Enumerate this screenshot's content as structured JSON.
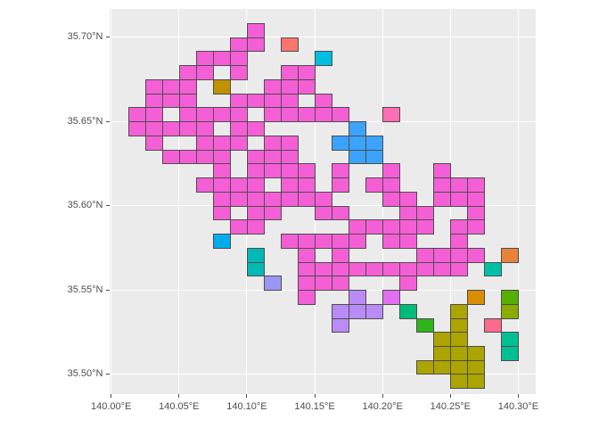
{
  "figure": {
    "background": "#FFFFFF",
    "panel_background": "#EBEBEB",
    "gridline_color": "#FFFFFF",
    "tile_border_color": "#4D4D4D",
    "axis_text_color": "#4D4D4D",
    "tick_mark_color": "#4D4D4D"
  },
  "chart_data": {
    "type": "heatmap",
    "subtype": "geographic-tile-map",
    "title": "",
    "xlabel": "",
    "ylabel": "",
    "legend": "none visible",
    "x_axis": {
      "ticks": [
        {
          "value": 140.0,
          "label": "140.00°E"
        },
        {
          "value": 140.05,
          "label": "140.05°E"
        },
        {
          "value": 140.1,
          "label": "140.10°E"
        },
        {
          "value": 140.15,
          "label": "140.15°E"
        },
        {
          "value": 140.2,
          "label": "140.20°E"
        },
        {
          "value": 140.25,
          "label": "140.25°E"
        },
        {
          "value": 140.3,
          "label": "140.30°E"
        }
      ]
    },
    "y_axis": {
      "ticks": [
        {
          "value": 35.7,
          "label": "35.70°N"
        },
        {
          "value": 35.65,
          "label": "35.65°N"
        },
        {
          "value": 35.6,
          "label": "35.60°N"
        },
        {
          "value": 35.55,
          "label": "35.55°N"
        },
        {
          "value": 35.5,
          "label": "35.50°N"
        }
      ]
    },
    "grid": {
      "major_x_step": 0.05,
      "major_y_step": 0.05,
      "minor_gridlines": false
    },
    "cell_definition": {
      "lon_size_deg": 0.0125,
      "lat_size_deg": 0.0083333,
      "origin_lon": 140.0,
      "row_rule": "lat_top = 35.7083333 - (r-1)*0.0083333 ; lon_left = 140.0 + c*0.0125"
    },
    "palette": {
      "magenta": "#F45FD6",
      "salmon": "#F8766D",
      "cyan": "#00BEDE",
      "gold": "#BE9200",
      "blue": "#3BA3FC",
      "azure": "#00ACEC",
      "teal": "#00B9B4",
      "tealgreen": "#00C1A8",
      "periwinkle": "#9A96F3",
      "lavender": "#B98BF6",
      "orchid": "#E26EF2",
      "hotpink": "#FF6EB4",
      "rose": "#FB6B8B",
      "orange": "#E8833C",
      "goldenrod": "#D98D00",
      "applegreen": "#55B000",
      "yellowgreen": "#89AC00",
      "springgreen": "#00BC78",
      "green": "#2FB41C",
      "olive": "#ACA400",
      "emerald": "#00BF92"
    },
    "cells": [
      [
        8,
        1,
        "magenta"
      ],
      [
        7,
        2,
        "magenta"
      ],
      [
        8,
        2,
        "magenta"
      ],
      [
        10,
        2,
        "salmon"
      ],
      [
        5,
        3,
        "magenta"
      ],
      [
        6,
        3,
        "magenta"
      ],
      [
        7,
        3,
        "magenta"
      ],
      [
        12,
        3,
        "cyan"
      ],
      [
        4,
        4,
        "magenta"
      ],
      [
        5,
        4,
        "magenta"
      ],
      [
        7,
        4,
        "magenta"
      ],
      [
        10,
        4,
        "magenta"
      ],
      [
        11,
        4,
        "magenta"
      ],
      [
        2,
        5,
        "magenta"
      ],
      [
        3,
        5,
        "magenta"
      ],
      [
        4,
        5,
        "magenta"
      ],
      [
        6,
        5,
        "gold"
      ],
      [
        9,
        5,
        "magenta"
      ],
      [
        10,
        5,
        "magenta"
      ],
      [
        11,
        5,
        "magenta"
      ],
      [
        2,
        6,
        "magenta"
      ],
      [
        3,
        6,
        "magenta"
      ],
      [
        4,
        6,
        "magenta"
      ],
      [
        7,
        6,
        "magenta"
      ],
      [
        8,
        6,
        "magenta"
      ],
      [
        9,
        6,
        "magenta"
      ],
      [
        10,
        6,
        "magenta"
      ],
      [
        12,
        6,
        "magenta"
      ],
      [
        1,
        7,
        "magenta"
      ],
      [
        2,
        7,
        "magenta"
      ],
      [
        4,
        7,
        "magenta"
      ],
      [
        5,
        7,
        "magenta"
      ],
      [
        6,
        7,
        "magenta"
      ],
      [
        7,
        7,
        "magenta"
      ],
      [
        9,
        7,
        "magenta"
      ],
      [
        10,
        7,
        "magenta"
      ],
      [
        11,
        7,
        "magenta"
      ],
      [
        12,
        7,
        "magenta"
      ],
      [
        13,
        7,
        "magenta"
      ],
      [
        16,
        7,
        "hotpink"
      ],
      [
        1,
        8,
        "magenta"
      ],
      [
        2,
        8,
        "magenta"
      ],
      [
        3,
        8,
        "magenta"
      ],
      [
        4,
        8,
        "magenta"
      ],
      [
        5,
        8,
        "magenta"
      ],
      [
        7,
        8,
        "magenta"
      ],
      [
        8,
        8,
        "magenta"
      ],
      [
        14,
        8,
        "blue"
      ],
      [
        2,
        9,
        "magenta"
      ],
      [
        5,
        9,
        "magenta"
      ],
      [
        6,
        9,
        "magenta"
      ],
      [
        7,
        9,
        "magenta"
      ],
      [
        9,
        9,
        "magenta"
      ],
      [
        10,
        9,
        "magenta"
      ],
      [
        13,
        9,
        "blue"
      ],
      [
        14,
        9,
        "blue"
      ],
      [
        15,
        9,
        "blue"
      ],
      [
        3,
        10,
        "magenta"
      ],
      [
        4,
        10,
        "magenta"
      ],
      [
        5,
        10,
        "magenta"
      ],
      [
        6,
        10,
        "magenta"
      ],
      [
        8,
        10,
        "magenta"
      ],
      [
        9,
        10,
        "magenta"
      ],
      [
        10,
        10,
        "magenta"
      ],
      [
        14,
        10,
        "blue"
      ],
      [
        15,
        10,
        "blue"
      ],
      [
        6,
        11,
        "magenta"
      ],
      [
        8,
        11,
        "magenta"
      ],
      [
        9,
        11,
        "magenta"
      ],
      [
        10,
        11,
        "magenta"
      ],
      [
        11,
        11,
        "magenta"
      ],
      [
        13,
        11,
        "magenta"
      ],
      [
        16,
        11,
        "magenta"
      ],
      [
        19,
        11,
        "magenta"
      ],
      [
        5,
        12,
        "magenta"
      ],
      [
        6,
        12,
        "magenta"
      ],
      [
        7,
        12,
        "magenta"
      ],
      [
        8,
        12,
        "magenta"
      ],
      [
        10,
        12,
        "magenta"
      ],
      [
        11,
        12,
        "magenta"
      ],
      [
        13,
        12,
        "magenta"
      ],
      [
        15,
        12,
        "magenta"
      ],
      [
        16,
        12,
        "magenta"
      ],
      [
        19,
        12,
        "magenta"
      ],
      [
        20,
        12,
        "magenta"
      ],
      [
        21,
        12,
        "magenta"
      ],
      [
        6,
        13,
        "magenta"
      ],
      [
        7,
        13,
        "magenta"
      ],
      [
        8,
        13,
        "magenta"
      ],
      [
        9,
        13,
        "magenta"
      ],
      [
        10,
        13,
        "magenta"
      ],
      [
        11,
        13,
        "magenta"
      ],
      [
        12,
        13,
        "magenta"
      ],
      [
        16,
        13,
        "magenta"
      ],
      [
        17,
        13,
        "magenta"
      ],
      [
        19,
        13,
        "magenta"
      ],
      [
        20,
        13,
        "magenta"
      ],
      [
        21,
        13,
        "magenta"
      ],
      [
        6,
        14,
        "magenta"
      ],
      [
        8,
        14,
        "magenta"
      ],
      [
        9,
        14,
        "magenta"
      ],
      [
        12,
        14,
        "magenta"
      ],
      [
        13,
        14,
        "magenta"
      ],
      [
        17,
        14,
        "magenta"
      ],
      [
        18,
        14,
        "magenta"
      ],
      [
        21,
        14,
        "magenta"
      ],
      [
        7,
        15,
        "magenta"
      ],
      [
        8,
        15,
        "magenta"
      ],
      [
        14,
        15,
        "magenta"
      ],
      [
        15,
        15,
        "magenta"
      ],
      [
        16,
        15,
        "magenta"
      ],
      [
        17,
        15,
        "magenta"
      ],
      [
        18,
        15,
        "magenta"
      ],
      [
        20,
        15,
        "magenta"
      ],
      [
        21,
        15,
        "magenta"
      ],
      [
        6,
        16,
        "azure"
      ],
      [
        10,
        16,
        "magenta"
      ],
      [
        11,
        16,
        "magenta"
      ],
      [
        12,
        16,
        "magenta"
      ],
      [
        13,
        16,
        "magenta"
      ],
      [
        14,
        16,
        "magenta"
      ],
      [
        16,
        16,
        "magenta"
      ],
      [
        17,
        16,
        "magenta"
      ],
      [
        20,
        16,
        "magenta"
      ],
      [
        8,
        17,
        "teal"
      ],
      [
        11,
        17,
        "magenta"
      ],
      [
        13,
        17,
        "magenta"
      ],
      [
        18,
        17,
        "magenta"
      ],
      [
        19,
        17,
        "magenta"
      ],
      [
        20,
        17,
        "magenta"
      ],
      [
        21,
        17,
        "magenta"
      ],
      [
        23,
        17,
        "orange"
      ],
      [
        8,
        18,
        "teal"
      ],
      [
        11,
        18,
        "magenta"
      ],
      [
        12,
        18,
        "magenta"
      ],
      [
        13,
        18,
        "magenta"
      ],
      [
        14,
        18,
        "magenta"
      ],
      [
        15,
        18,
        "magenta"
      ],
      [
        16,
        18,
        "magenta"
      ],
      [
        17,
        18,
        "magenta"
      ],
      [
        18,
        18,
        "magenta"
      ],
      [
        19,
        18,
        "magenta"
      ],
      [
        20,
        18,
        "magenta"
      ],
      [
        22,
        18,
        "tealgreen"
      ],
      [
        9,
        19,
        "periwinkle"
      ],
      [
        11,
        19,
        "magenta"
      ],
      [
        12,
        19,
        "magenta"
      ],
      [
        13,
        19,
        "magenta"
      ],
      [
        17,
        19,
        "magenta"
      ],
      [
        11,
        20,
        "magenta"
      ],
      [
        14,
        20,
        "lavender"
      ],
      [
        16,
        20,
        "orchid"
      ],
      [
        21,
        20,
        "goldenrod"
      ],
      [
        23,
        20,
        "applegreen"
      ],
      [
        13,
        21,
        "lavender"
      ],
      [
        14,
        21,
        "lavender"
      ],
      [
        15,
        21,
        "lavender"
      ],
      [
        17,
        21,
        "springgreen"
      ],
      [
        20,
        21,
        "olive"
      ],
      [
        23,
        21,
        "yellowgreen"
      ],
      [
        13,
        22,
        "lavender"
      ],
      [
        18,
        22,
        "green"
      ],
      [
        20,
        22,
        "olive"
      ],
      [
        22,
        22,
        "rose"
      ],
      [
        19,
        23,
        "olive"
      ],
      [
        20,
        23,
        "olive"
      ],
      [
        23,
        23,
        "emerald"
      ],
      [
        19,
        24,
        "olive"
      ],
      [
        20,
        24,
        "olive"
      ],
      [
        21,
        24,
        "olive"
      ],
      [
        23,
        24,
        "emerald"
      ],
      [
        18,
        25,
        "olive"
      ],
      [
        19,
        25,
        "olive"
      ],
      [
        20,
        25,
        "olive"
      ],
      [
        21,
        25,
        "olive"
      ],
      [
        20,
        26,
        "olive"
      ],
      [
        21,
        26,
        "olive"
      ]
    ]
  }
}
